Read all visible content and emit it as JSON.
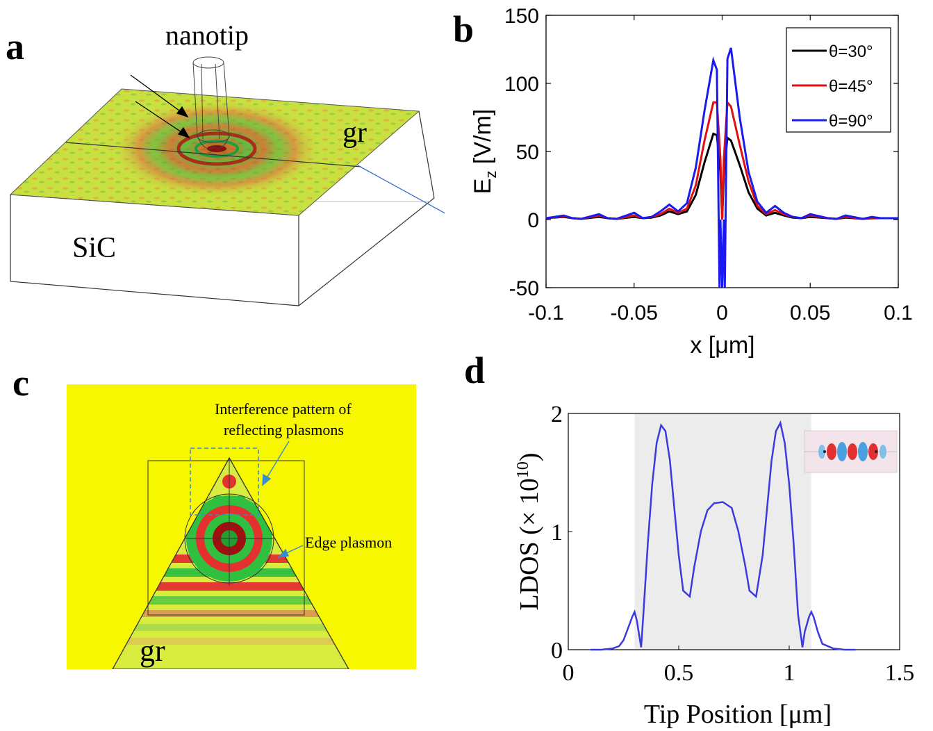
{
  "panels": {
    "a": {
      "label": "a",
      "tip_label": "nanotip",
      "graphene_label": "gr",
      "substrate_label": "SiC"
    },
    "b": {
      "label": "b"
    },
    "c": {
      "label": "c",
      "annot_interference_line1": "Interference pattern of",
      "annot_interference_line2": "reflecting plasmons",
      "annot_edge": "Edge plasmon",
      "graphene_label": "gr"
    },
    "d": {
      "label": "d",
      "inset_present": true
    }
  },
  "chart_data": [
    {
      "panel": "b",
      "type": "line",
      "xlabel": "x [μm]",
      "ylabel": "E_z [V/m]",
      "xlim": [
        -0.1,
        0.1
      ],
      "ylim": [
        -50,
        150
      ],
      "xticks": [
        -0.1,
        -0.05,
        0,
        0.05,
        0.1
      ],
      "xtick_labels": [
        "-0.1",
        "-0.05",
        "0",
        "0.05",
        "0.1"
      ],
      "yticks": [
        -50,
        0,
        50,
        100,
        150
      ],
      "ytick_labels": [
        "-50",
        "0",
        "50",
        "100",
        "150"
      ],
      "legend_position": "top-right",
      "series": [
        {
          "name": "θ=30°",
          "color": "#000000",
          "x": [
            -0.1,
            -0.09,
            -0.085,
            -0.08,
            -0.07,
            -0.065,
            -0.06,
            -0.05,
            -0.045,
            -0.04,
            -0.035,
            -0.03,
            -0.025,
            -0.02,
            -0.015,
            -0.01,
            -0.005,
            -0.003,
            -0.001,
            0,
            0.001,
            0.003,
            0.005,
            0.01,
            0.015,
            0.02,
            0.025,
            0.03,
            0.035,
            0.04,
            0.045,
            0.05,
            0.06,
            0.065,
            0.07,
            0.08,
            0.085,
            0.09,
            0.1
          ],
          "y": [
            1,
            2,
            1,
            0.5,
            2,
            1,
            0.5,
            2,
            1,
            1.5,
            3,
            6,
            4,
            6,
            18,
            42,
            63,
            62,
            35,
            0,
            35,
            60,
            58,
            40,
            20,
            8,
            3,
            5,
            3,
            1.5,
            1,
            2,
            1,
            0.5,
            1.5,
            0.5,
            1,
            1,
            1
          ]
        },
        {
          "name": "θ=45°",
          "color": "#e01010",
          "x": [
            -0.1,
            -0.09,
            -0.085,
            -0.08,
            -0.07,
            -0.065,
            -0.06,
            -0.05,
            -0.045,
            -0.04,
            -0.035,
            -0.03,
            -0.025,
            -0.02,
            -0.015,
            -0.01,
            -0.005,
            -0.003,
            -0.001,
            0,
            0.001,
            0.003,
            0.005,
            0.01,
            0.015,
            0.02,
            0.025,
            0.03,
            0.035,
            0.04,
            0.045,
            0.05,
            0.06,
            0.065,
            0.07,
            0.08,
            0.085,
            0.09,
            0.1
          ],
          "y": [
            1,
            2.5,
            1,
            0.5,
            3,
            1,
            0.5,
            3,
            1,
            2,
            4,
            8,
            5,
            8,
            25,
            58,
            86,
            86,
            45,
            0,
            45,
            86,
            83,
            55,
            28,
            10,
            4,
            7,
            4,
            2,
            1,
            3,
            1,
            0.5,
            2,
            0.5,
            1.5,
            1,
            1
          ]
        },
        {
          "name": "θ=90°",
          "color": "#1a1aee",
          "x": [
            -0.1,
            -0.09,
            -0.085,
            -0.08,
            -0.07,
            -0.065,
            -0.06,
            -0.05,
            -0.045,
            -0.04,
            -0.035,
            -0.03,
            -0.025,
            -0.02,
            -0.015,
            -0.01,
            -0.005,
            -0.003,
            -0.0015,
            -0.001,
            0,
            0.001,
            0.0015,
            0.003,
            0.005,
            0.01,
            0.015,
            0.02,
            0.025,
            0.03,
            0.035,
            0.04,
            0.045,
            0.05,
            0.06,
            0.065,
            0.07,
            0.08,
            0.085,
            0.09,
            0.1
          ],
          "y": [
            1,
            3,
            1,
            0.5,
            4,
            1,
            0.5,
            5,
            1,
            2,
            6,
            11,
            6,
            12,
            38,
            80,
            117,
            110,
            -50,
            0,
            -50,
            0,
            -50,
            118,
            126,
            75,
            35,
            13,
            5,
            10,
            5,
            2,
            1,
            4,
            1,
            0.5,
            3,
            0.5,
            2,
            1,
            1
          ]
        }
      ]
    },
    {
      "panel": "d",
      "type": "line",
      "xlabel": "Tip Position [μm]",
      "ylabel": "LDOS (× 10",
      "ylabel_exponent": "10",
      "ylabel_close": ")",
      "xlim": [
        0,
        1.5
      ],
      "ylim": [
        0,
        2
      ],
      "xticks": [
        0,
        0.5,
        1,
        1.5
      ],
      "xtick_labels": [
        "0",
        "0.5",
        "1",
        "1.5"
      ],
      "yticks": [
        0,
        1,
        2
      ],
      "ytick_labels": [
        "0",
        "1",
        "2"
      ],
      "shaded_region": [
        0.3,
        1.1
      ],
      "series": [
        {
          "color": "#3a3adf",
          "x": [
            0.1,
            0.15,
            0.2,
            0.23,
            0.25,
            0.27,
            0.29,
            0.3,
            0.31,
            0.33,
            0.34,
            0.36,
            0.38,
            0.4,
            0.42,
            0.44,
            0.46,
            0.48,
            0.5,
            0.52,
            0.55,
            0.57,
            0.6,
            0.63,
            0.66,
            0.7,
            0.74,
            0.77,
            0.8,
            0.82,
            0.85,
            0.88,
            0.9,
            0.92,
            0.94,
            0.96,
            0.98,
            1.0,
            1.02,
            1.04,
            1.06,
            1.07,
            1.09,
            1.1,
            1.11,
            1.13,
            1.15,
            1.2,
            1.25,
            1.3
          ],
          "y": [
            0,
            0,
            0.01,
            0.03,
            0.08,
            0.18,
            0.28,
            0.32,
            0.25,
            0.02,
            0.3,
            0.9,
            1.4,
            1.75,
            1.9,
            1.85,
            1.6,
            1.2,
            0.8,
            0.5,
            0.45,
            0.7,
            1.0,
            1.18,
            1.24,
            1.25,
            1.2,
            1.0,
            0.72,
            0.5,
            0.45,
            0.8,
            1.2,
            1.6,
            1.85,
            1.92,
            1.75,
            1.4,
            0.9,
            0.3,
            0.02,
            0.15,
            0.28,
            0.32,
            0.28,
            0.15,
            0.05,
            0.01,
            0,
            0
          ]
        }
      ]
    }
  ]
}
